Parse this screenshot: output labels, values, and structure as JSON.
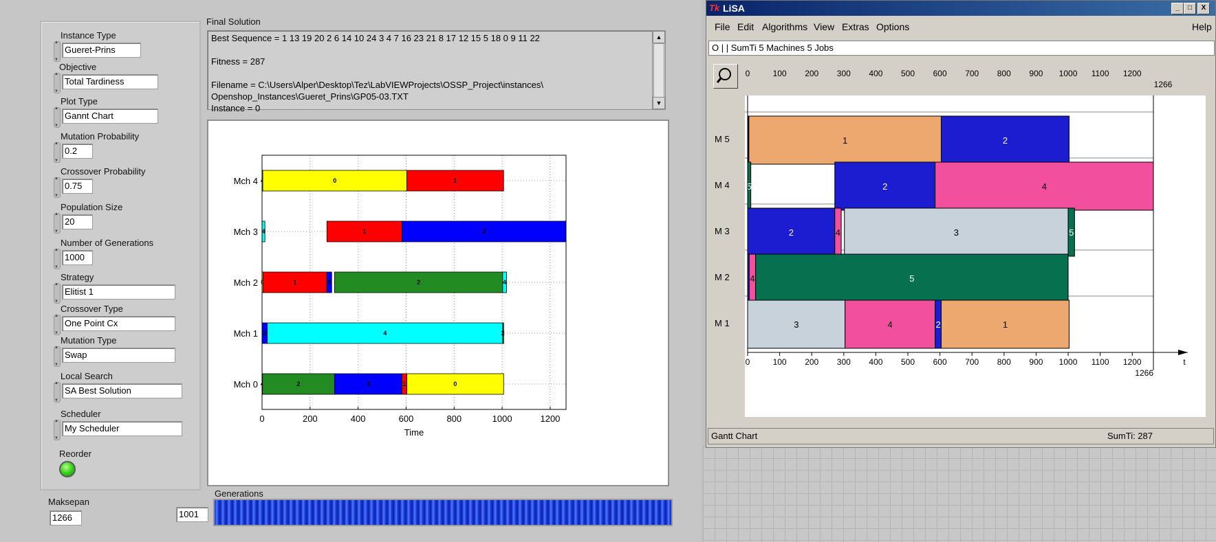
{
  "labview": {
    "params": [
      {
        "label": "Instance Type",
        "value": "Gueret-Prins"
      },
      {
        "label": "Objective",
        "value": "Total Tardiness"
      },
      {
        "label": "Plot Type",
        "value": "Gannt Chart"
      },
      {
        "label": "Mutation Probability",
        "value": "0.2"
      },
      {
        "label": "Crossover Probability",
        "value": "0.75"
      },
      {
        "label": "Population Size",
        "value": "20"
      },
      {
        "label": "Number of Generations",
        "value": "1000"
      },
      {
        "label": "Strategy",
        "value": "Elitist 1"
      },
      {
        "label": "Crossover Type",
        "value": "One Point Cx"
      },
      {
        "label": "Mutation Type",
        "value": "Swap"
      },
      {
        "label": "Local Search",
        "value": "SA Best Solution"
      },
      {
        "label": "Scheduler",
        "value": "My Scheduler"
      }
    ],
    "reorder_label": "Reorder",
    "final_solution_label": "Final Solution",
    "final_solution_text": "Best Sequence = 1 13 19 20 2 6 14 10 24 3 4 7 16 23 21 8 17 12 15 5 18 0 9 11 22\n\nFitness = 287\n\nFilename = C:\\Users\\Alper\\Desktop\\Tez\\LabVIEWProjects\\OSSP_Project\\instances\\\nOpenshop_Instances\\Gueret_Prins\\GP05-03.TXT\nInstance = 0",
    "makespan_label": "Maksepan",
    "makespan_value": "1266",
    "generation_counter": "1001",
    "generations_label": "Generations",
    "generations_progress": 1.0
  },
  "chart_data": [
    {
      "type": "gantt",
      "title": "",
      "xlabel": "Time",
      "ylabel": "",
      "xlim": [
        0,
        1266
      ],
      "xticks": [
        0,
        200,
        400,
        600,
        800,
        1000,
        1200
      ],
      "grid": true,
      "rows": [
        "Mch 0",
        "Mch 1",
        "Mch 2",
        "Mch 3",
        "Mch 4"
      ],
      "job_colors": {
        "0": "#ffff00",
        "1": "#ff0000",
        "2": "#228b22",
        "3": "#0000ff",
        "4": "#00ffff"
      },
      "tasks": [
        {
          "row": "Mch 0",
          "job": "4",
          "start": 0,
          "end": 2
        },
        {
          "row": "Mch 0",
          "job": "2",
          "start": 2,
          "end": 302
        },
        {
          "row": "Mch 0",
          "job": "3",
          "start": 302,
          "end": 583
        },
        {
          "row": "Mch 0",
          "job": "1",
          "start": 583,
          "end": 603
        },
        {
          "row": "Mch 0",
          "job": "0",
          "start": 603,
          "end": 1006
        },
        {
          "row": "Mch 1",
          "job": "3",
          "start": 0,
          "end": 22
        },
        {
          "row": "Mch 1",
          "job": "4",
          "start": 22,
          "end": 1002
        },
        {
          "row": "Mch 1",
          "job": "2",
          "start": 1002,
          "end": 1004
        },
        {
          "row": "Mch 2",
          "job": "0",
          "start": 0,
          "end": 4
        },
        {
          "row": "Mch 2",
          "job": "1",
          "start": 4,
          "end": 270
        },
        {
          "row": "Mch 2",
          "job": "3",
          "start": 270,
          "end": 290
        },
        {
          "row": "Mch 2",
          "job": "2",
          "start": 302,
          "end": 1002
        },
        {
          "row": "Mch 2",
          "job": "4",
          "start": 1002,
          "end": 1018
        },
        {
          "row": "Mch 3",
          "job": "4",
          "start": 0,
          "end": 12
        },
        {
          "row": "Mch 3",
          "job": "1",
          "start": 270,
          "end": 583
        },
        {
          "row": "Mch 3",
          "job": "3",
          "start": 583,
          "end": 1266
        },
        {
          "row": "Mch 4",
          "job": "4",
          "start": 0,
          "end": 3
        },
        {
          "row": "Mch 4",
          "job": "0",
          "start": 3,
          "end": 603
        },
        {
          "row": "Mch 4",
          "job": "1",
          "start": 603,
          "end": 1006
        }
      ]
    },
    {
      "type": "gantt",
      "title": "",
      "xlabel": "t",
      "ylabel": "",
      "xlim": [
        0,
        1266
      ],
      "xticks": [
        0,
        100,
        200,
        300,
        400,
        500,
        600,
        700,
        800,
        900,
        1000,
        1100,
        1200
      ],
      "cmax_label": "1266",
      "rows": [
        "M 5",
        "M 4",
        "M 3",
        "M 2",
        "M 1"
      ],
      "job_colors": {
        "1": "#eda870",
        "2": "#1c1cd0",
        "3": "#c8d2da",
        "4": "#f2509e",
        "5": "#06704f"
      },
      "tasks": [
        {
          "row": "M 5",
          "job": "",
          "start": 0,
          "end": 4,
          "color": "#111111"
        },
        {
          "row": "M 5",
          "job": "1",
          "start": 4,
          "end": 604
        },
        {
          "row": "M 5",
          "job": "2",
          "start": 604,
          "end": 1003
        },
        {
          "row": "M 4",
          "job": "5",
          "start": 0,
          "end": 10
        },
        {
          "row": "M 4",
          "job": "2",
          "start": 272,
          "end": 585
        },
        {
          "row": "M 4",
          "job": "4",
          "start": 585,
          "end": 1266
        },
        {
          "row": "M 3",
          "job": "2",
          "start": 0,
          "end": 272
        },
        {
          "row": "M 3",
          "job": "4",
          "start": 272,
          "end": 292
        },
        {
          "row": "M 3",
          "job": "3",
          "start": 302,
          "end": 1000
        },
        {
          "row": "M 3",
          "job": "5",
          "start": 1000,
          "end": 1020
        },
        {
          "row": "M 2",
          "job": "",
          "start": 0,
          "end": 5,
          "color": "#1c1cd0"
        },
        {
          "row": "M 2",
          "job": "4",
          "start": 5,
          "end": 25
        },
        {
          "row": "M 2",
          "job": "5",
          "start": 25,
          "end": 1000
        },
        {
          "row": "M 1",
          "job": "3",
          "start": 0,
          "end": 304
        },
        {
          "row": "M 1",
          "job": "4",
          "start": 304,
          "end": 585
        },
        {
          "row": "M 1",
          "job": "2",
          "start": 585,
          "end": 604
        },
        {
          "row": "M 1",
          "job": "1",
          "start": 604,
          "end": 1003
        }
      ]
    }
  ],
  "lisa": {
    "title": "LiSA",
    "title_icon": "Tk",
    "window_buttons": [
      "_",
      "□",
      "X"
    ],
    "menu": [
      "File",
      "Edit",
      "Algorithms",
      "View",
      "Extras",
      "Options"
    ],
    "help": "Help",
    "problem": "O | | SumTi      5 Machines   5 Jobs",
    "status_left": "Gantt Chart",
    "status_right": "SumTi: 287"
  }
}
